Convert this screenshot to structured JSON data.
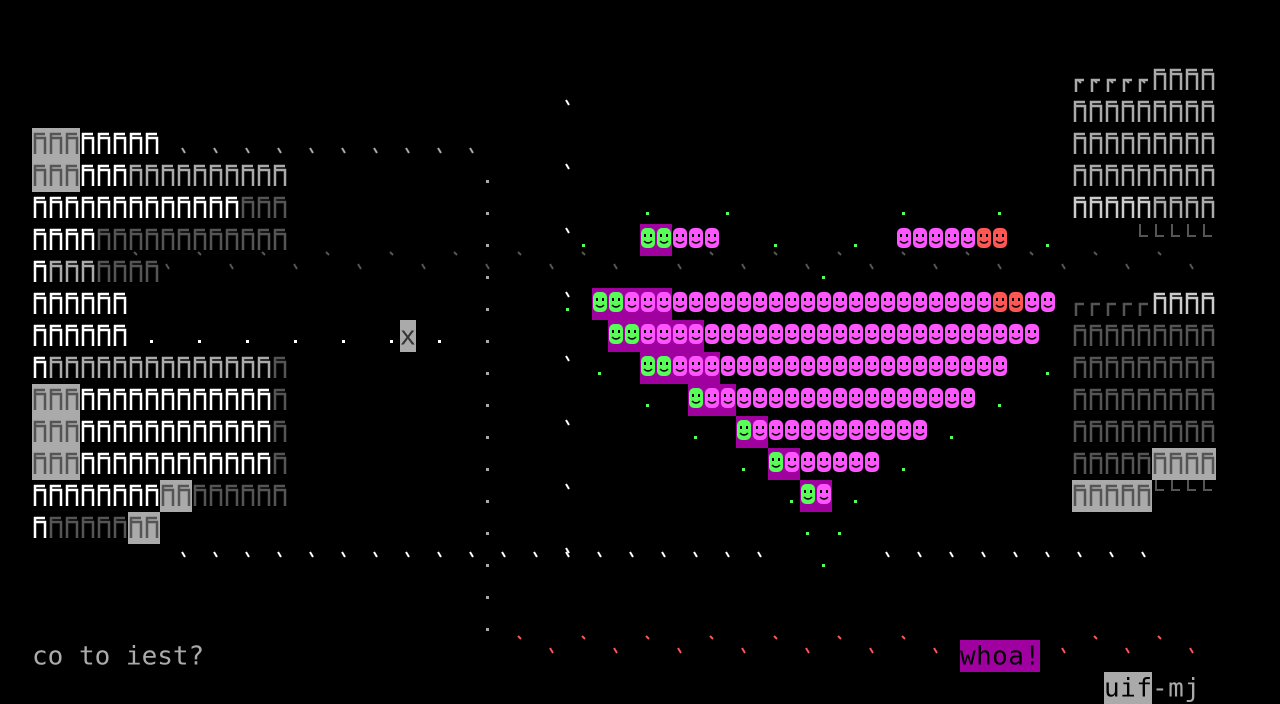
{
  "prompt": {
    "text": "co to iest?"
  },
  "marker": {
    "text": "x"
  },
  "exclamation": {
    "text": "whoa!"
  },
  "status": {
    "highlight": "uif",
    "rest": "-mj"
  }
}
